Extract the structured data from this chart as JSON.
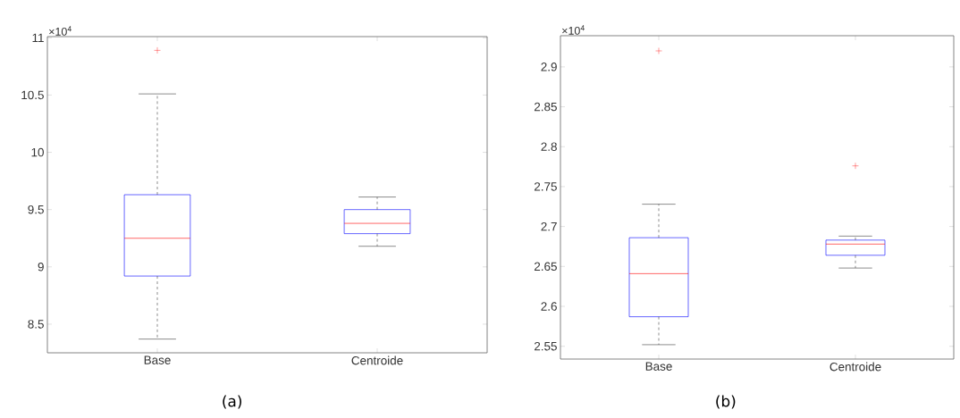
{
  "chart_data": [
    {
      "type": "box",
      "categories": [
        "Base",
        "Centroide"
      ],
      "color": "#0000ff",
      "boxes": [
        {
          "low": 8.37,
          "q1": 8.92,
          "median": 9.25,
          "q3": 9.63,
          "high": 10.51,
          "outliers": [
            10.89
          ]
        },
        {
          "low": 9.18,
          "q1": 9.29,
          "median": 9.38,
          "q3": 9.5,
          "high": 9.61
        }
      ],
      "ylim": [
        8.25,
        11.01
      ],
      "yticks": [
        8.5,
        9,
        9.5,
        10,
        10.5,
        11
      ],
      "annotations": [
        "×10$^{4}$",
        "(a)"
      ]
    },
    {
      "type": "box",
      "categories": [
        "Base",
        "Centroide"
      ],
      "color": "#0000ff",
      "boxes": [
        {
          "low": 2.552,
          "q1": 2.587,
          "median": 2.641,
          "q3": 2.686,
          "high": 2.728,
          "outliers": [
            2.92
          ]
        },
        {
          "low": 2.648,
          "q1": 2.664,
          "median": 2.678,
          "q3": 2.683,
          "high": 2.688,
          "outliers": [
            2.776
          ]
        }
      ],
      "ylim": [
        2.534,
        2.939
      ],
      "yticks": [
        2.55,
        2.6,
        2.65,
        2.7,
        2.75,
        2.8,
        2.85,
        2.9
      ],
      "annotations": [
        "×10$^{4}$",
        "(b)"
      ]
    }
  ]
}
